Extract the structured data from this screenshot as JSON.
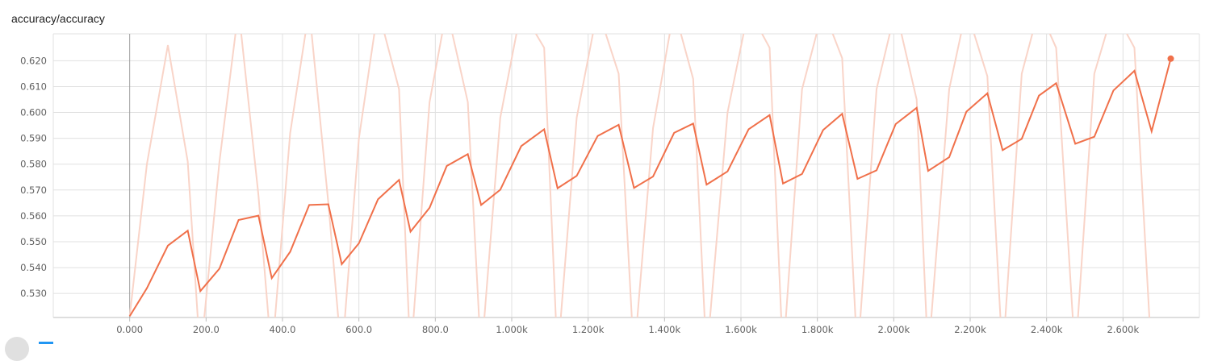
{
  "card": {
    "title": "accuracy/accuracy"
  },
  "footer": {
    "fit_icon": "fit-domain-icon",
    "toggle_icon": "toggle-log-scale-icon"
  },
  "chart_data": {
    "type": "line",
    "title": "accuracy/accuracy",
    "xlabel": "",
    "ylabel": "",
    "xlim": [
      -200,
      2800
    ],
    "ylim": [
      0.5207,
      0.6304
    ],
    "grid": true,
    "x_ticks": [
      0,
      200,
      400,
      600,
      800,
      1000,
      1200,
      1400,
      1600,
      1800,
      2000,
      2200,
      2400,
      2600
    ],
    "x_tick_labels": [
      "0.000",
      "200.0",
      "400.0",
      "600.0",
      "800.0",
      "1.000k",
      "1.200k",
      "1.400k",
      "1.600k",
      "1.800k",
      "2.000k",
      "2.200k",
      "2.400k",
      "2.600k"
    ],
    "y_ticks": [
      0.53,
      0.54,
      0.55,
      0.56,
      0.57,
      0.58,
      0.59,
      0.6,
      0.61,
      0.62
    ],
    "y_tick_labels": [
      "0.530",
      "0.540",
      "0.550",
      "0.560",
      "0.570",
      "0.580",
      "0.590",
      "0.600",
      "0.610",
      "0.620"
    ],
    "colors": {
      "smoothed": "#f0704a",
      "raw": "#f9d4c8",
      "grid": "#e0e0e0",
      "zero_axis": "#9e9e9e"
    },
    "series": [
      {
        "role": "smoothed",
        "x": [
          0,
          45,
          100,
          152,
          185,
          235,
          285,
          337,
          372,
          420,
          470,
          520,
          555,
          600,
          650,
          705,
          735,
          785,
          830,
          885,
          920,
          970,
          1025,
          1085,
          1120,
          1170,
          1225,
          1280,
          1320,
          1370,
          1425,
          1475,
          1510,
          1565,
          1620,
          1675,
          1710,
          1760,
          1815,
          1865,
          1905,
          1955,
          2005,
          2060,
          2090,
          2145,
          2190,
          2245,
          2285,
          2335,
          2380,
          2425,
          2475,
          2525,
          2575,
          2630,
          2675
        ],
        "values": [
          0.5212,
          0.532,
          0.5485,
          0.5543,
          0.5309,
          0.5396,
          0.5584,
          0.5601,
          0.5359,
          0.5461,
          0.5642,
          0.5645,
          0.5413,
          0.5494,
          0.5664,
          0.5739,
          0.5539,
          0.5631,
          0.5793,
          0.5839,
          0.5642,
          0.5701,
          0.587,
          0.5935,
          0.5707,
          0.5755,
          0.5909,
          0.5952,
          0.5708,
          0.5752,
          0.5921,
          0.5957,
          0.5721,
          0.5772,
          0.5935,
          0.599,
          0.5725,
          0.5762,
          0.5932,
          0.5995,
          0.5743,
          0.5776,
          0.5955,
          0.6018,
          0.5774,
          0.5827,
          0.6003,
          0.6074,
          0.5854,
          0.5898,
          0.6065,
          0.6113,
          0.5879,
          0.5906,
          0.6085,
          0.6161,
          0.5927
        ]
      },
      {
        "role": "raw",
        "x": [
          0,
          45,
          100,
          152,
          185,
          235,
          285,
          337,
          372,
          420,
          470,
          520,
          555,
          600,
          650,
          705,
          735,
          785,
          830,
          885,
          920,
          970,
          1025,
          1085,
          1120,
          1170,
          1225,
          1280,
          1320,
          1370,
          1425,
          1475,
          1510,
          1565,
          1620,
          1675,
          1710,
          1760,
          1815,
          1865,
          1905,
          1955,
          2005,
          2060,
          2090,
          2145,
          2190,
          2245,
          2285,
          2335,
          2380,
          2425,
          2475,
          2525,
          2575,
          2630,
          2675
        ],
        "values": [
          0.5212,
          0.58,
          0.626,
          0.581,
          0.505,
          0.581,
          0.64,
          0.568,
          0.505,
          0.592,
          0.64,
          0.565,
          0.505,
          0.59,
          0.64,
          0.609,
          0.505,
          0.604,
          0.64,
          0.604,
          0.505,
          0.598,
          0.64,
          0.625,
          0.505,
          0.598,
          0.64,
          0.615,
          0.505,
          0.594,
          0.64,
          0.613,
          0.505,
          0.6,
          0.64,
          0.625,
          0.505,
          0.609,
          0.64,
          0.621,
          0.505,
          0.609,
          0.64,
          0.605,
          0.505,
          0.609,
          0.64,
          0.614,
          0.505,
          0.615,
          0.64,
          0.625,
          0.505,
          0.615,
          0.64,
          0.625,
          0.505
        ]
      }
    ],
    "last_point": {
      "x": 2725,
      "y": 0.6208
    }
  }
}
